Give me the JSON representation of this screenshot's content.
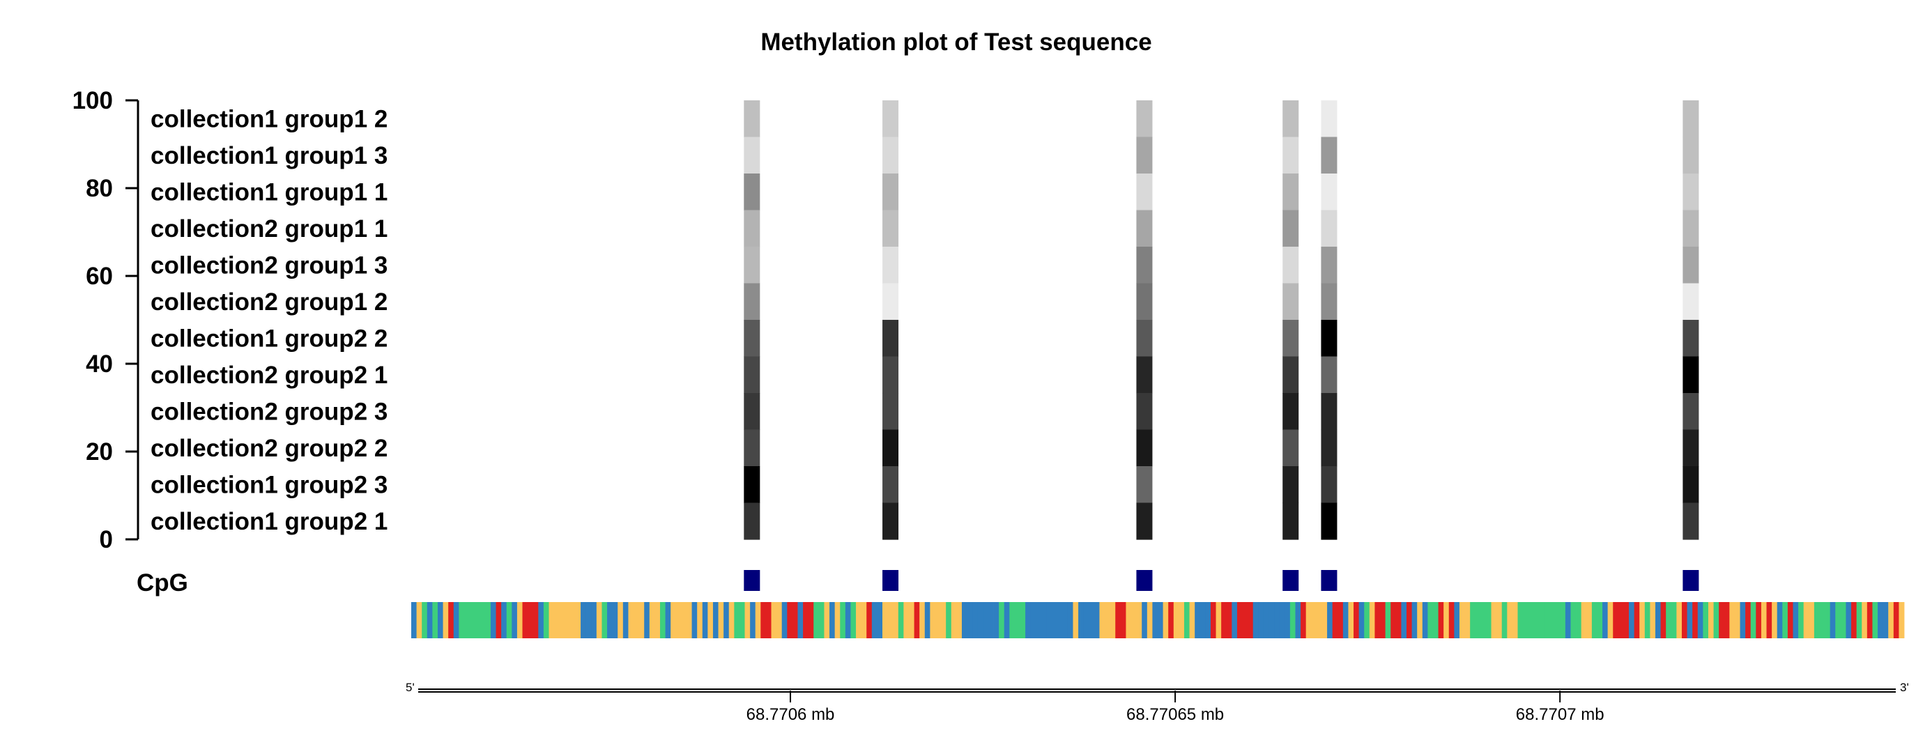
{
  "chart_data": {
    "type": "heatmap",
    "title": "Methylation plot of Test sequence",
    "y_axis": {
      "ylim": [
        0,
        100
      ],
      "ticks": [
        "0",
        "20",
        "40",
        "60",
        "80",
        "100"
      ]
    },
    "samples": [
      "collection1 group1 2",
      "collection1 group1 3",
      "collection1 group1 1",
      "collection2 group1 1",
      "collection2 group1 3",
      "collection2 group1 2",
      "collection1 group2 2",
      "collection2 group2 1",
      "collection2 group2 3",
      "collection2 group2 2",
      "collection1 group2 3",
      "collection1 group2 1"
    ],
    "x_axis": {
      "unit": "mb",
      "range_mb": [
        68.770551,
        68.770744
      ],
      "ticks": [
        {
          "value": 68.7706,
          "label": "68.7706 mb"
        },
        {
          "value": 68.77065,
          "label": "68.77065 mb"
        },
        {
          "value": 68.7707,
          "label": "68.7707 mb"
        }
      ],
      "left_end_label": "5'",
      "right_end_label": "3'"
    },
    "cpg_label": "CpG",
    "cpg_color": "#00007a",
    "cpg_sites": [
      {
        "position_mb": 68.770595,
        "methylation": [
          25,
          15,
          45,
          30,
          28,
          45,
          65,
          72,
          78,
          72,
          100,
          80
        ]
      },
      {
        "position_mb": 68.770613,
        "methylation": [
          20,
          15,
          30,
          25,
          12,
          8,
          80,
          72,
          72,
          92,
          72,
          88
        ]
      },
      {
        "position_mb": 68.770646,
        "methylation": [
          25,
          35,
          15,
          35,
          50,
          55,
          65,
          85,
          78,
          90,
          60,
          88
        ]
      },
      {
        "position_mb": 68.770665,
        "methylation": [
          25,
          15,
          30,
          40,
          15,
          28,
          58,
          78,
          88,
          68,
          88,
          88
        ]
      },
      {
        "position_mb": 68.77067,
        "methylation": [
          8,
          40,
          8,
          15,
          40,
          45,
          100,
          60,
          85,
          85,
          78,
          100
        ]
      },
      {
        "position_mb": 68.770717,
        "methylation": [
          25,
          25,
          20,
          28,
          35,
          8,
          72,
          100,
          72,
          88,
          92,
          78
        ]
      }
    ],
    "sequence_colors": {
      "A": "#3ecf7c",
      "C": "#2f7fc1",
      "G": "#fcc45a",
      "T": "#e02020"
    },
    "sequence": "CGACACGTCAAAAAACTCACGTTTCAGGGGGGCCCGACCGCGGGCGGACGGGGCGCGCGCGAAGCGTTGGCTTCTTAAGCGACAGGTCCGGGAGGTGCGGGAGGCCCCCCCACAAACCCCCCCCCGCCCCGGGTTGGGCGCCGTGGAGCCCTGTTCTTTCCCCCCCACTGGGGCTTCGTCAGTTATTCTCGCAATGTCGGAAAAGGAGGAAAAAAAAACAAGGAACGTTTCTGAGCTAAGTCTCAGATTGGCTATGTGCATCAGGAAACAACTAGTACCGTG",
    "grid": false,
    "legend": "none"
  }
}
